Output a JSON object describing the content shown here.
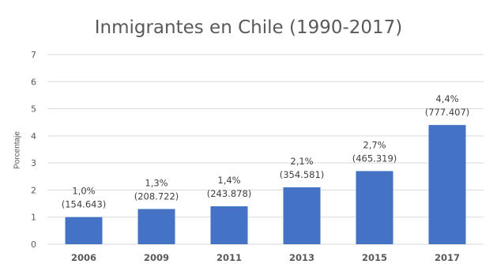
{
  "chart_data": {
    "type": "bar",
    "title": "Inmigrantes en Chile (1990-2017)",
    "xlabel": "",
    "ylabel": "Porcentaje",
    "categories": [
      "2006",
      "2009",
      "2011",
      "2013",
      "2015",
      "2017"
    ],
    "values": [
      1.0,
      1.3,
      1.4,
      2.1,
      2.7,
      4.4
    ],
    "data_labels": [
      [
        "1,0%",
        "(154.643)"
      ],
      [
        "1,3%",
        "(208.722)"
      ],
      [
        "1,4%",
        "(243.878)"
      ],
      [
        "2,1%",
        "(354.581)"
      ],
      [
        "2,7%",
        "(465.319)"
      ],
      [
        "4,4%",
        "(777.407)"
      ]
    ],
    "ylim": [
      0,
      7
    ],
    "yticks": [
      "0",
      "1",
      "2",
      "3",
      "4",
      "5",
      "6",
      "7"
    ],
    "grid": true,
    "bar_color": "#4472C4",
    "grid_color": "#D9D9D9",
    "text_color": "#595959",
    "label_color": "#404040"
  }
}
